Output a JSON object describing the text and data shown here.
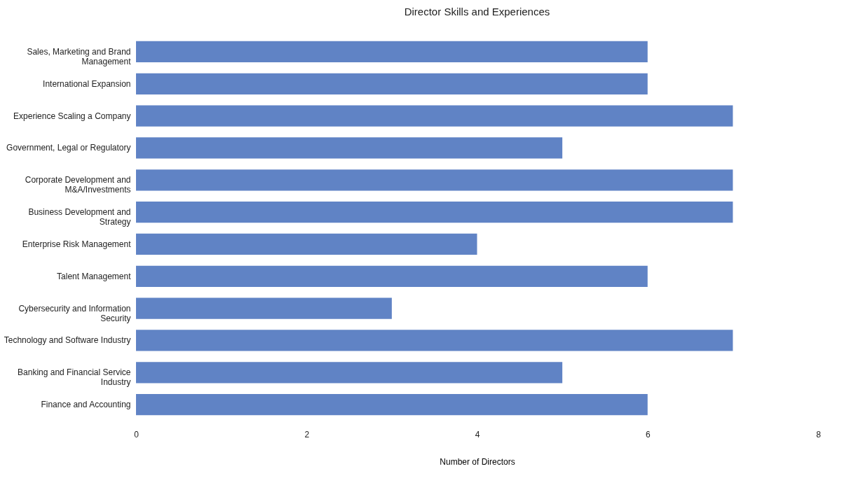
{
  "chart_data": {
    "type": "bar",
    "orientation": "horizontal",
    "title": "Director Skills and Experiences",
    "xlabel": "Number of Directors",
    "categories": [
      "Sales, Marketing and Brand Management",
      "International Expansion",
      "Experience Scaling a Company",
      "Government, Legal or Regulatory",
      "Corporate Development and M&A/Investments",
      "Business Development and Strategy",
      "Enterprise Risk Management",
      "Talent Management",
      "Cybersecurity and Information Security",
      "Technology and Software Industry",
      "Banking and Financial Service Industry",
      "Finance and Accounting"
    ],
    "values": [
      6,
      6,
      7,
      5,
      7,
      7,
      4,
      6,
      3,
      7,
      5,
      6
    ],
    "color": "#6083c5",
    "xlim": [
      0,
      8
    ],
    "xticks": [
      0,
      2,
      4,
      6,
      8
    ]
  }
}
